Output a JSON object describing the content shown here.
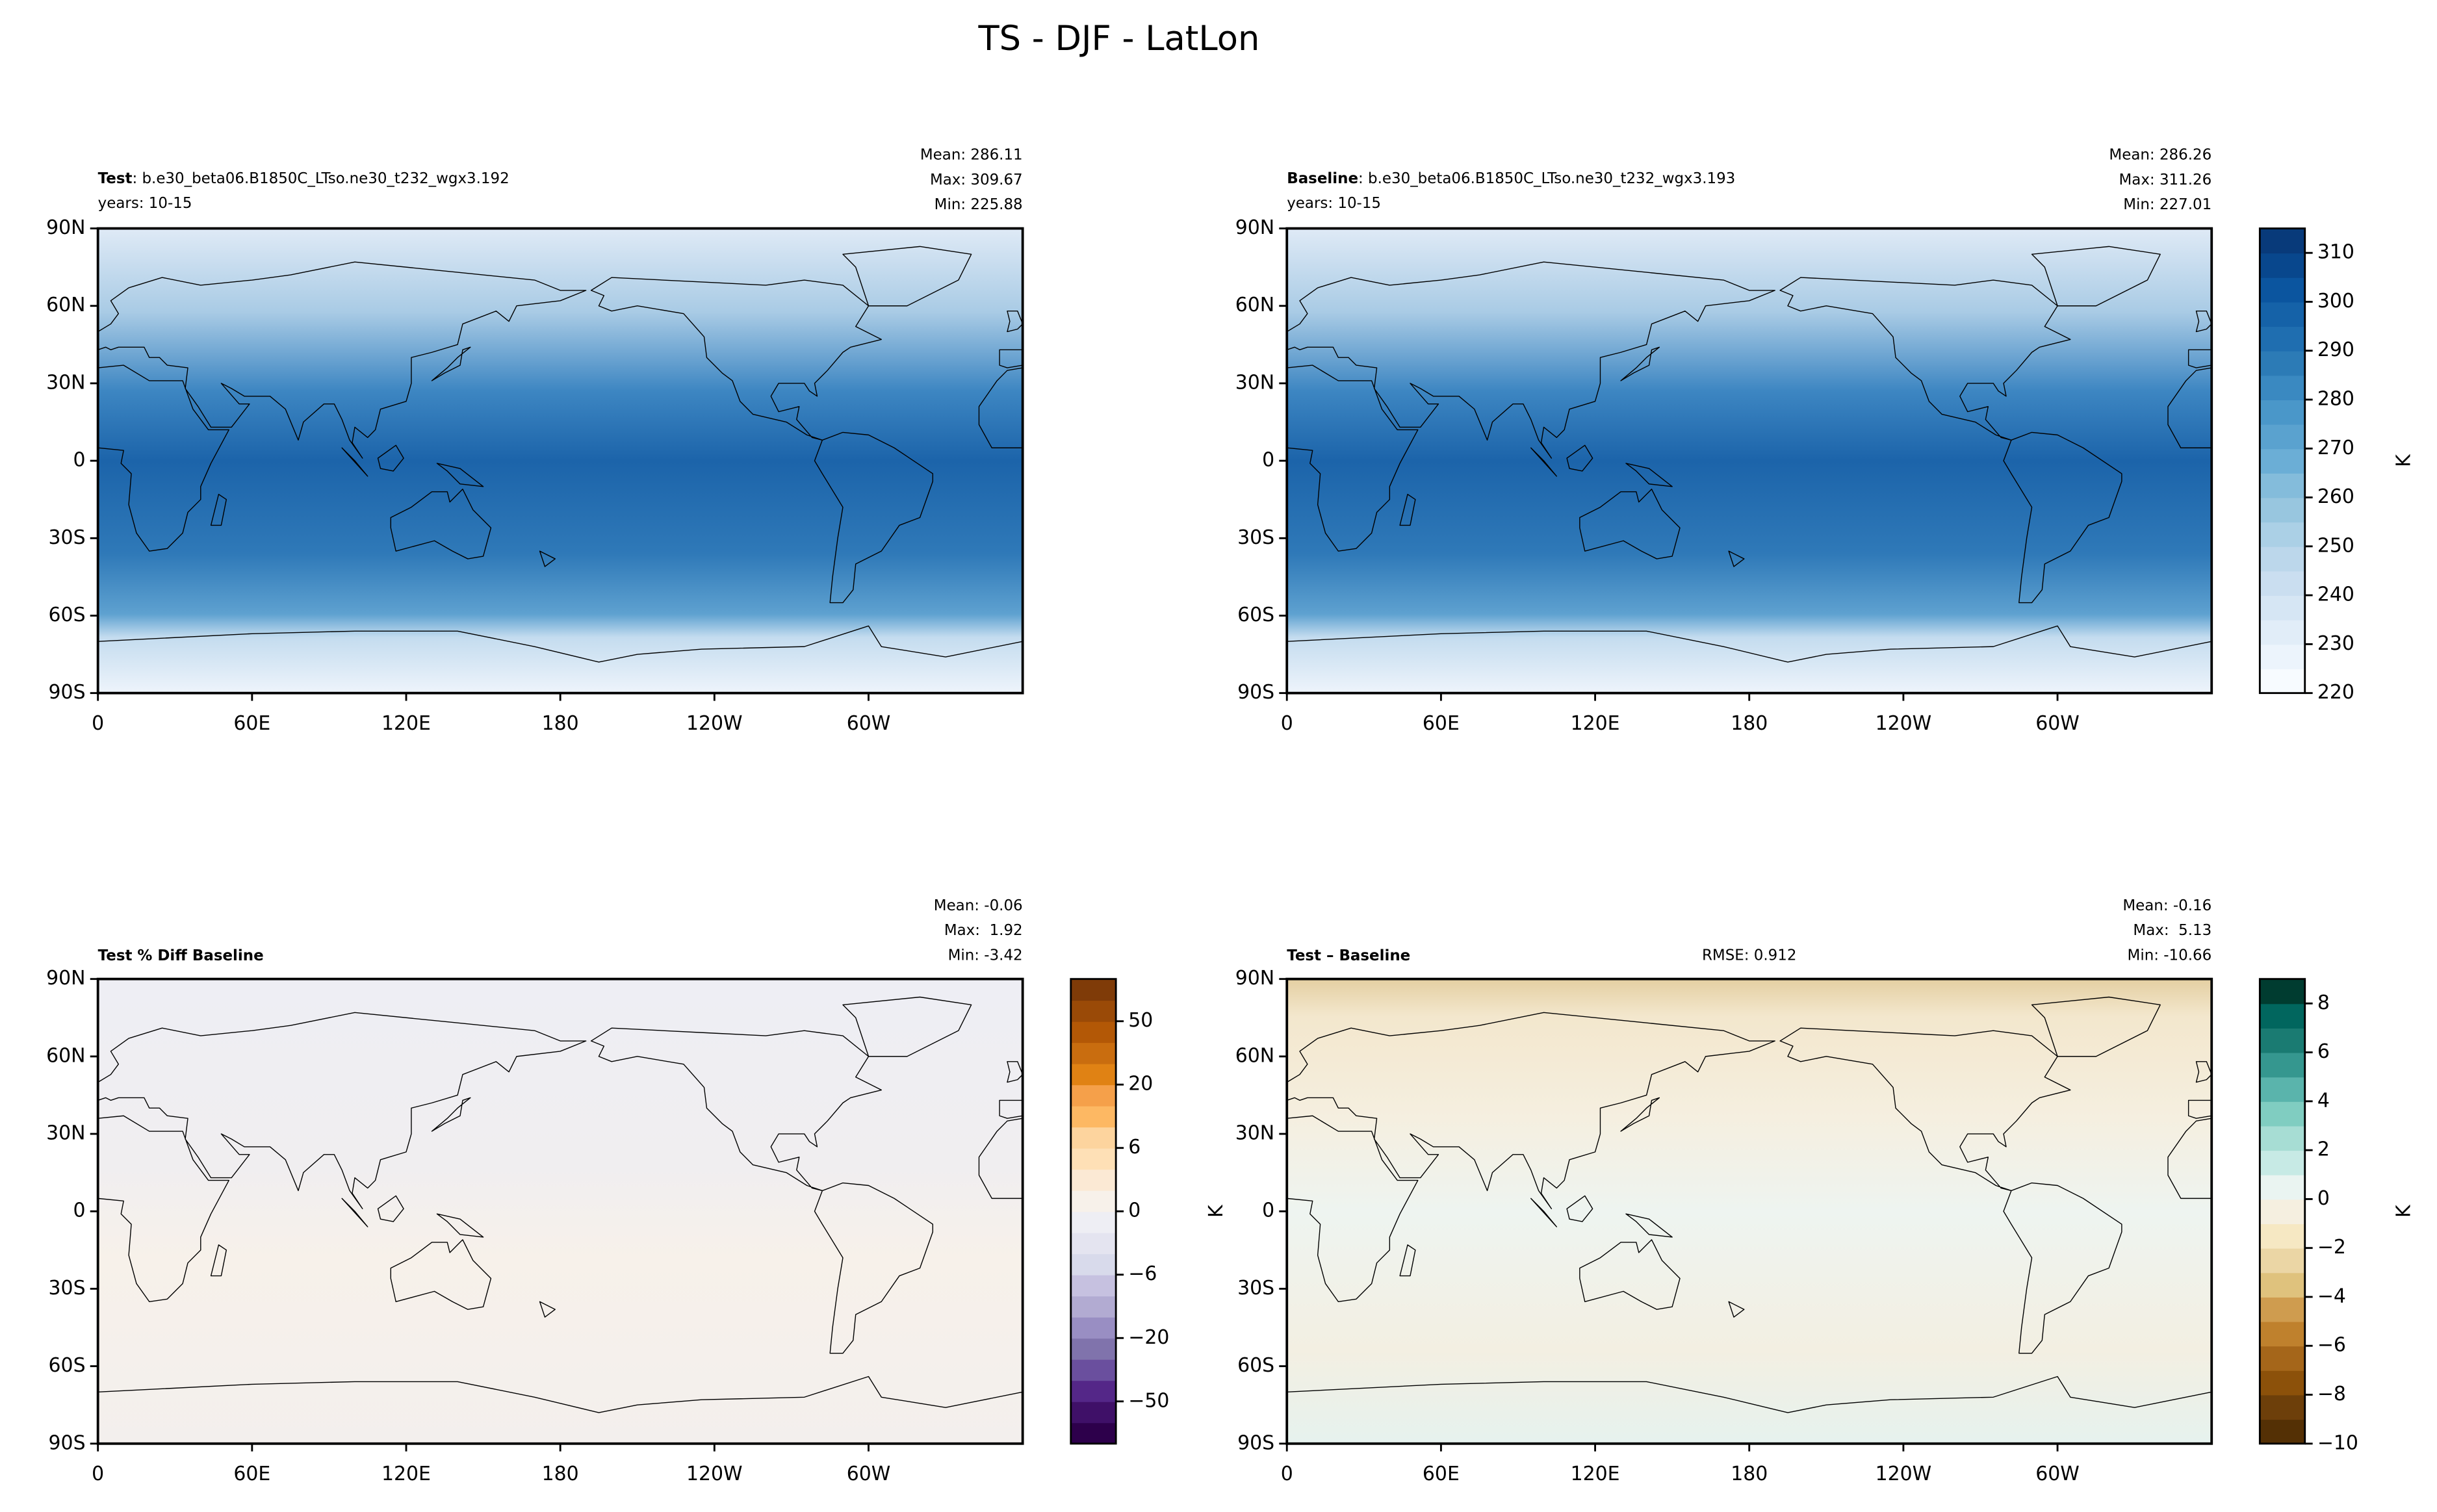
{
  "title": "TS - DJF - LatLon",
  "chart_data": [
    {
      "type": "map",
      "title_bold": "Test",
      "title": ": b.e30_beta06.B1850C_LTso.ne30_t232_wgx3.192",
      "subtitle": "years: 10-15",
      "stats": [
        "Mean: 286.11",
        "Max: 309.67",
        "Min: 225.88"
      ],
      "xlim": [
        0,
        360
      ],
      "ylim": [
        -90,
        90
      ],
      "xticks": [
        0,
        {
          "value": 60,
          "label": "60E"
        },
        {
          "value": 120,
          "label": "120E"
        },
        180,
        {
          "value": 240,
          "label": "120W"
        },
        {
          "value": 300,
          "label": "60W"
        }
      ],
      "yticks": [
        {
          "value": -90,
          "label": "90S"
        },
        {
          "value": -60,
          "label": "60S"
        },
        {
          "value": -30,
          "label": "30S"
        },
        0,
        {
          "value": 30,
          "label": "30N"
        },
        {
          "value": 60,
          "label": "60N"
        },
        {
          "value": 90,
          "label": "90N"
        }
      ]
    },
    {
      "type": "map",
      "title_bold": "Baseline",
      "title": ": b.e30_beta06.B1850C_LTso.ne30_t232_wgx3.193",
      "subtitle": "years: 10-15",
      "stats": [
        "Mean: 286.26",
        "Max: 311.26",
        "Min: 227.01"
      ],
      "xlim": [
        0,
        360
      ],
      "ylim": [
        -90,
        90
      ],
      "xticks": [
        0,
        {
          "value": 60,
          "label": "60E"
        },
        {
          "value": 120,
          "label": "120E"
        },
        180,
        {
          "value": 240,
          "label": "120W"
        },
        {
          "value": 300,
          "label": "60W"
        }
      ],
      "yticks": [
        {
          "value": -90,
          "label": "90S"
        },
        {
          "value": -60,
          "label": "60S"
        },
        {
          "value": -30,
          "label": "30S"
        },
        0,
        {
          "value": 30,
          "label": "30N"
        },
        {
          "value": 60,
          "label": "60N"
        },
        {
          "value": 90,
          "label": "90N"
        }
      ],
      "colorbar": {
        "label": "K",
        "levels": [
          220,
          225,
          230,
          235,
          240,
          245,
          250,
          255,
          260,
          265,
          270,
          275,
          280,
          285,
          290,
          295,
          300,
          305,
          310,
          315
        ],
        "colors": [
          "#f7fbff",
          "#ecf4fc",
          "#e1edf8",
          "#d6e6f4",
          "#cadef0",
          "#bcd7eb",
          "#abd0e6",
          "#98c6df",
          "#84bcdb",
          "#6baed6",
          "#5aa2cf",
          "#4a97c9",
          "#3a89c1",
          "#2c7bb6",
          "#1f6eb0",
          "#1562a8",
          "#0b559f",
          "#08478d",
          "#083a7a"
        ],
        "ticks": [
          220,
          230,
          240,
          250,
          260,
          270,
          280,
          290,
          300,
          310
        ]
      }
    },
    {
      "type": "map",
      "title_bold": "Test % Diff Baseline",
      "stats": [
        "Mean: -0.06",
        "Max:  1.92",
        "Min: -3.42"
      ],
      "xlim": [
        0,
        360
      ],
      "ylim": [
        -90,
        90
      ],
      "xticks": [
        0,
        {
          "value": 60,
          "label": "60E"
        },
        {
          "value": 120,
          "label": "120E"
        },
        180,
        {
          "value": 240,
          "label": "120W"
        },
        {
          "value": 300,
          "label": "60W"
        }
      ],
      "yticks": [
        {
          "value": -90,
          "label": "90S"
        },
        {
          "value": -60,
          "label": "60S"
        },
        {
          "value": -30,
          "label": "30S"
        },
        0,
        {
          "value": 30,
          "label": "30N"
        },
        {
          "value": 60,
          "label": "60N"
        },
        {
          "value": 90,
          "label": "90N"
        }
      ],
      "colorbar": {
        "levels": [
          -100,
          -75,
          -50,
          -40,
          -30,
          -20,
          -15,
          -10,
          -6,
          -4,
          -2,
          0,
          2,
          4,
          6,
          10,
          15,
          20,
          30,
          40,
          50,
          75,
          100
        ],
        "colors": [
          "#2d004b",
          "#3f1068",
          "#542788",
          "#6a4f9e",
          "#8073ac",
          "#998ec3",
          "#b2abd2",
          "#c6c1e0",
          "#d8daeb",
          "#e4e4f0",
          "#eeeef4",
          "#f7f1ea",
          "#fbe9d4",
          "#fee0b6",
          "#fdd49e",
          "#fdb863",
          "#f5a04a",
          "#e08214",
          "#c96d0f",
          "#b35806",
          "#9a4a07",
          "#7f3b08"
        ],
        "ticks": [
          {
            "value": -50,
            "label": "−50"
          },
          {
            "value": -20,
            "label": "−20"
          },
          {
            "value": -6,
            "label": "−6"
          },
          0,
          6,
          20,
          50
        ]
      }
    },
    {
      "type": "map",
      "title_bold": "Test – Baseline",
      "rmse": "RMSE: 0.912",
      "ylabel": "K",
      "stats": [
        "Mean: -0.16",
        "Max:  5.13",
        "Min: -10.66"
      ],
      "xlim": [
        0,
        360
      ],
      "ylim": [
        -90,
        90
      ],
      "xticks": [
        0,
        {
          "value": 60,
          "label": "60E"
        },
        {
          "value": 120,
          "label": "120E"
        },
        180,
        {
          "value": 240,
          "label": "120W"
        },
        {
          "value": 300,
          "label": "60W"
        }
      ],
      "yticks": [
        {
          "value": -90,
          "label": "90S"
        },
        {
          "value": -60,
          "label": "60S"
        },
        {
          "value": -30,
          "label": "30S"
        },
        0,
        {
          "value": 30,
          "label": "30N"
        },
        {
          "value": 60,
          "label": "60N"
        },
        {
          "value": 90,
          "label": "90N"
        }
      ],
      "colorbar": {
        "label": "K",
        "levels": [
          -10,
          -9,
          -8,
          -7,
          -6,
          -5,
          -4,
          -3,
          -2,
          -1,
          0,
          1,
          2,
          3,
          4,
          5,
          6,
          7,
          8,
          9
        ],
        "colors": [
          "#543005",
          "#6d3f0a",
          "#8c510a",
          "#a5661a",
          "#bf812d",
          "#cf9c4f",
          "#dfc27d",
          "#ebd6a5",
          "#f6e8c3",
          "#f5efe0",
          "#eaf4f1",
          "#c7eae5",
          "#a7ddd4",
          "#80cdc1",
          "#5ab4ac",
          "#35978f",
          "#1a7b72",
          "#01665e",
          "#003c30"
        ],
        "ticks": [
          {
            "value": -10,
            "label": "−10"
          },
          {
            "value": -8,
            "label": "−8"
          },
          {
            "value": -6,
            "label": "−6"
          },
          {
            "value": -4,
            "label": "−4"
          },
          {
            "value": -2,
            "label": "−2"
          },
          0,
          2,
          4,
          6,
          8
        ]
      }
    }
  ]
}
